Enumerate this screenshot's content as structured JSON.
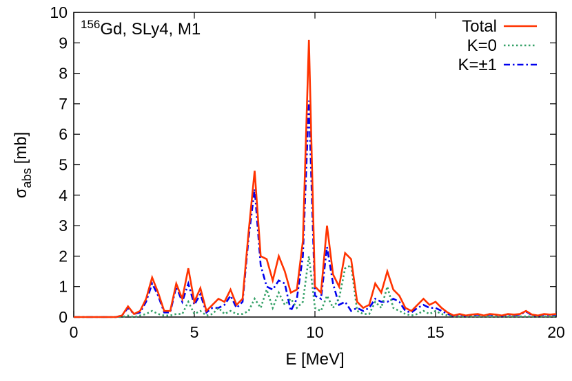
{
  "chart_data": {
    "type": "line",
    "title": {
      "superscript": "156",
      "text": "Gd, SLy4, M1"
    },
    "xlabel": "E [MeV]",
    "ylabel": {
      "symbol": "σ",
      "subscript": "abs",
      "unit": "[mb]"
    },
    "x": [
      0,
      0.25,
      0.5,
      0.75,
      1,
      1.25,
      1.5,
      1.75,
      2,
      2.25,
      2.5,
      2.75,
      3,
      3.25,
      3.5,
      3.75,
      4,
      4.25,
      4.5,
      4.75,
      5,
      5.25,
      5.5,
      5.75,
      6,
      6.25,
      6.5,
      6.75,
      7,
      7.25,
      7.5,
      7.75,
      8,
      8.25,
      8.5,
      8.75,
      9,
      9.25,
      9.5,
      9.75,
      10,
      10.25,
      10.5,
      10.75,
      11,
      11.25,
      11.5,
      11.75,
      12,
      12.25,
      12.5,
      12.75,
      13,
      13.25,
      13.5,
      13.75,
      14,
      14.25,
      14.5,
      14.75,
      15,
      15.25,
      15.5,
      15.75,
      16,
      16.25,
      16.5,
      16.75,
      17,
      17.25,
      17.5,
      17.75,
      18,
      18.25,
      18.5,
      18.75,
      19,
      19.25,
      19.5,
      19.75,
      20
    ],
    "series": [
      {
        "name": "Total",
        "color": "#ff3300",
        "style": "solid",
        "values": [
          0,
          0,
          0,
          0,
          0,
          0,
          0,
          0,
          0.05,
          0.35,
          0.1,
          0.2,
          0.6,
          1.3,
          0.8,
          0.2,
          0.2,
          1.1,
          0.6,
          1.6,
          0.5,
          0.95,
          0.2,
          0.4,
          0.6,
          0.5,
          0.9,
          0.4,
          0.6,
          2.8,
          4.8,
          2.0,
          1.9,
          1.2,
          2.0,
          1.5,
          0.8,
          0.9,
          2.5,
          9.1,
          1.0,
          0.8,
          3.0,
          1.4,
          1.0,
          2.1,
          1.9,
          0.5,
          0.3,
          0.4,
          1.1,
          0.8,
          1.5,
          0.9,
          0.7,
          0.3,
          0.2,
          0.4,
          0.6,
          0.4,
          0.5,
          0.3,
          0.15,
          0.05,
          0.1,
          0.05,
          0.08,
          0.1,
          0.05,
          0.1,
          0.08,
          0.05,
          0.1,
          0.08,
          0.1,
          0.2,
          0.08,
          0.05,
          0.1,
          0.08,
          0.1
        ]
      },
      {
        "name": "K=0",
        "color": "#33a066",
        "style": "dotted",
        "values": [
          0,
          0,
          0,
          0,
          0,
          0,
          0,
          0,
          0,
          0.05,
          0,
          0.05,
          0.1,
          0.2,
          0.1,
          0.05,
          0.05,
          0.1,
          0.1,
          0.5,
          0.1,
          0.2,
          0.05,
          0.1,
          0.3,
          0.1,
          0.2,
          0.1,
          0.1,
          0.2,
          0.6,
          0.3,
          0.9,
          0.3,
          0.8,
          0.4,
          0.6,
          0.3,
          0.5,
          2.0,
          0.3,
          0.2,
          0.7,
          0.3,
          0.6,
          1.6,
          1.7,
          0.2,
          0.1,
          0.1,
          0.5,
          0.3,
          1.0,
          0.3,
          0.2,
          0.1,
          0.05,
          0.1,
          0.2,
          0.1,
          0.2,
          0.1,
          0.05,
          0.02,
          0.02,
          0.02,
          0.02,
          0.02,
          0.02,
          0.02,
          0.02,
          0.02,
          0.02,
          0.02,
          0.02,
          0.02,
          0.02,
          0.02,
          0.02,
          0.02,
          0.02
        ]
      },
      {
        "name": "K=±1",
        "color": "#0000ee",
        "style": "dashdot",
        "values": [
          0,
          0,
          0,
          0,
          0,
          0,
          0,
          0,
          0.05,
          0.3,
          0.1,
          0.15,
          0.5,
          1.1,
          0.7,
          0.15,
          0.15,
          1.0,
          0.5,
          1.1,
          0.4,
          0.75,
          0.15,
          0.3,
          0.3,
          0.4,
          0.7,
          0.3,
          0.5,
          2.6,
          4.2,
          1.7,
          1.0,
          0.9,
          1.2,
          1.1,
          0.2,
          0.6,
          2.0,
          7.1,
          0.7,
          0.6,
          2.3,
          1.1,
          0.4,
          0.5,
          0.2,
          0.3,
          0.2,
          0.3,
          0.6,
          0.5,
          0.5,
          0.6,
          0.5,
          0.2,
          0.15,
          0.3,
          0.4,
          0.3,
          0.3,
          0.2,
          0.1,
          0.03,
          0.08,
          0.03,
          0.06,
          0.08,
          0.03,
          0.08,
          0.06,
          0.03,
          0.08,
          0.06,
          0.08,
          0.18,
          0.06,
          0.03,
          0.08,
          0.06,
          0.08
        ]
      }
    ],
    "xlim": [
      0,
      20
    ],
    "xticks": [
      0,
      5,
      10,
      15,
      20
    ],
    "ylim": [
      0,
      10
    ],
    "yticks": [
      0,
      1,
      2,
      3,
      4,
      5,
      6,
      7,
      8,
      9,
      10
    ],
    "legend": "upper right"
  }
}
